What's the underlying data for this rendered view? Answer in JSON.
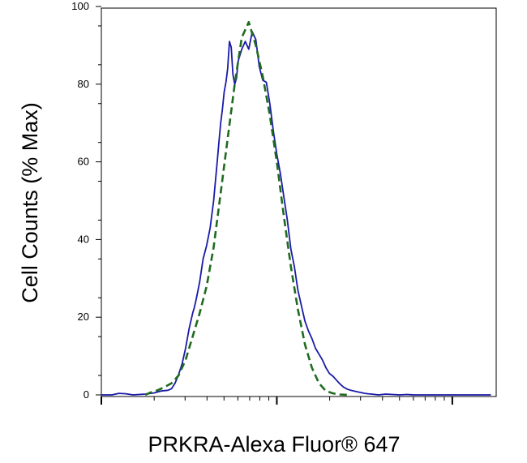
{
  "chart_data": {
    "type": "line",
    "title": "",
    "xlabel": "PRKRA-Alexa Fluor® 647",
    "ylabel": "Cell Counts (% Max)",
    "x_scale": "log",
    "x_tick_labels": [],
    "y_ticks": [
      0,
      20,
      40,
      60,
      80,
      100
    ],
    "ylim": [
      0,
      100
    ],
    "grid": false,
    "legend": "none",
    "series": [
      {
        "color": "#1a1aa8",
        "style": "solid",
        "x": [
          0,
          0.06,
          0.1,
          0.14,
          0.18,
          0.25,
          0.3,
          0.34,
          0.38,
          0.4,
          0.42,
          0.44,
          0.46,
          0.48,
          0.5,
          0.52,
          0.53,
          0.54,
          0.56,
          0.58,
          0.6,
          0.62,
          0.64,
          0.65,
          0.66,
          0.67,
          0.68,
          0.69,
          0.7,
          0.71,
          0.72,
          0.73,
          0.74,
          0.75,
          0.76,
          0.77,
          0.78,
          0.8,
          0.82,
          0.84,
          0.86,
          0.88,
          0.9,
          0.92,
          0.94,
          0.96,
          0.98,
          1.0,
          1.02,
          1.04,
          1.06,
          1.08,
          1.1,
          1.12,
          1.14,
          1.16,
          1.18,
          1.2,
          1.22,
          1.24,
          1.26,
          1.28,
          1.3,
          1.32,
          1.34,
          1.36,
          1.38,
          1.4,
          1.42,
          1.44,
          1.46,
          1.48,
          1.5,
          1.52,
          1.54,
          1.56,
          1.58,
          1.62,
          1.66,
          1.7,
          1.74,
          1.78,
          1.82,
          1.86,
          1.9,
          1.94,
          1.98,
          2.04,
          2.12,
          2.22
        ],
        "y": [
          0,
          0,
          0.4,
          0.3,
          0,
          0.2,
          0.5,
          1.0,
          1.2,
          1.6,
          3.0,
          5.2,
          8.0,
          12.0,
          17.0,
          21.0,
          22.5,
          24.5,
          29.0,
          35.0,
          38.5,
          43.0,
          50.0,
          55.0,
          60.0,
          65.0,
          70.0,
          73.5,
          78.0,
          80.5,
          84.0,
          91.0,
          89.5,
          82.5,
          80.0,
          81.5,
          86.0,
          89.0,
          91.0,
          89.0,
          93.5,
          91.5,
          84.5,
          81.0,
          80.5,
          75.0,
          68.0,
          62.0,
          57.0,
          51.0,
          45.0,
          37.5,
          33.0,
          27.0,
          23.0,
          19.0,
          16.5,
          14.5,
          12.0,
          10.5,
          9.0,
          7.0,
          5.5,
          4.8,
          3.8,
          2.8,
          2.0,
          1.5,
          1.2,
          1.0,
          0.8,
          0.6,
          0.4,
          0.3,
          0.2,
          0.1,
          0,
          0.2,
          0.1,
          0,
          0.1,
          0,
          0,
          0,
          0,
          0,
          0,
          0,
          0,
          0
        ]
      },
      {
        "color": "#1f6b1f",
        "style": "dashed",
        "x": [
          0.25,
          0.28,
          0.32,
          0.36,
          0.4,
          0.44,
          0.48,
          0.52,
          0.56,
          0.6,
          0.64,
          0.68,
          0.72,
          0.76,
          0.8,
          0.84,
          0.88,
          0.92,
          0.96,
          1.0,
          1.04,
          1.08,
          1.12,
          1.16,
          1.2,
          1.24,
          1.28,
          1.32,
          1.36,
          1.4
        ],
        "y": [
          0,
          0.6,
          1.2,
          2.0,
          3.0,
          5.0,
          9.0,
          15.0,
          21.0,
          28.0,
          38.0,
          52.0,
          66.0,
          80.0,
          92.0,
          96.0,
          90.0,
          82.0,
          72.0,
          60.0,
          46.0,
          33.0,
          22.0,
          13.0,
          7.0,
          3.0,
          1.0,
          0.4,
          0.1,
          0
        ]
      }
    ]
  }
}
